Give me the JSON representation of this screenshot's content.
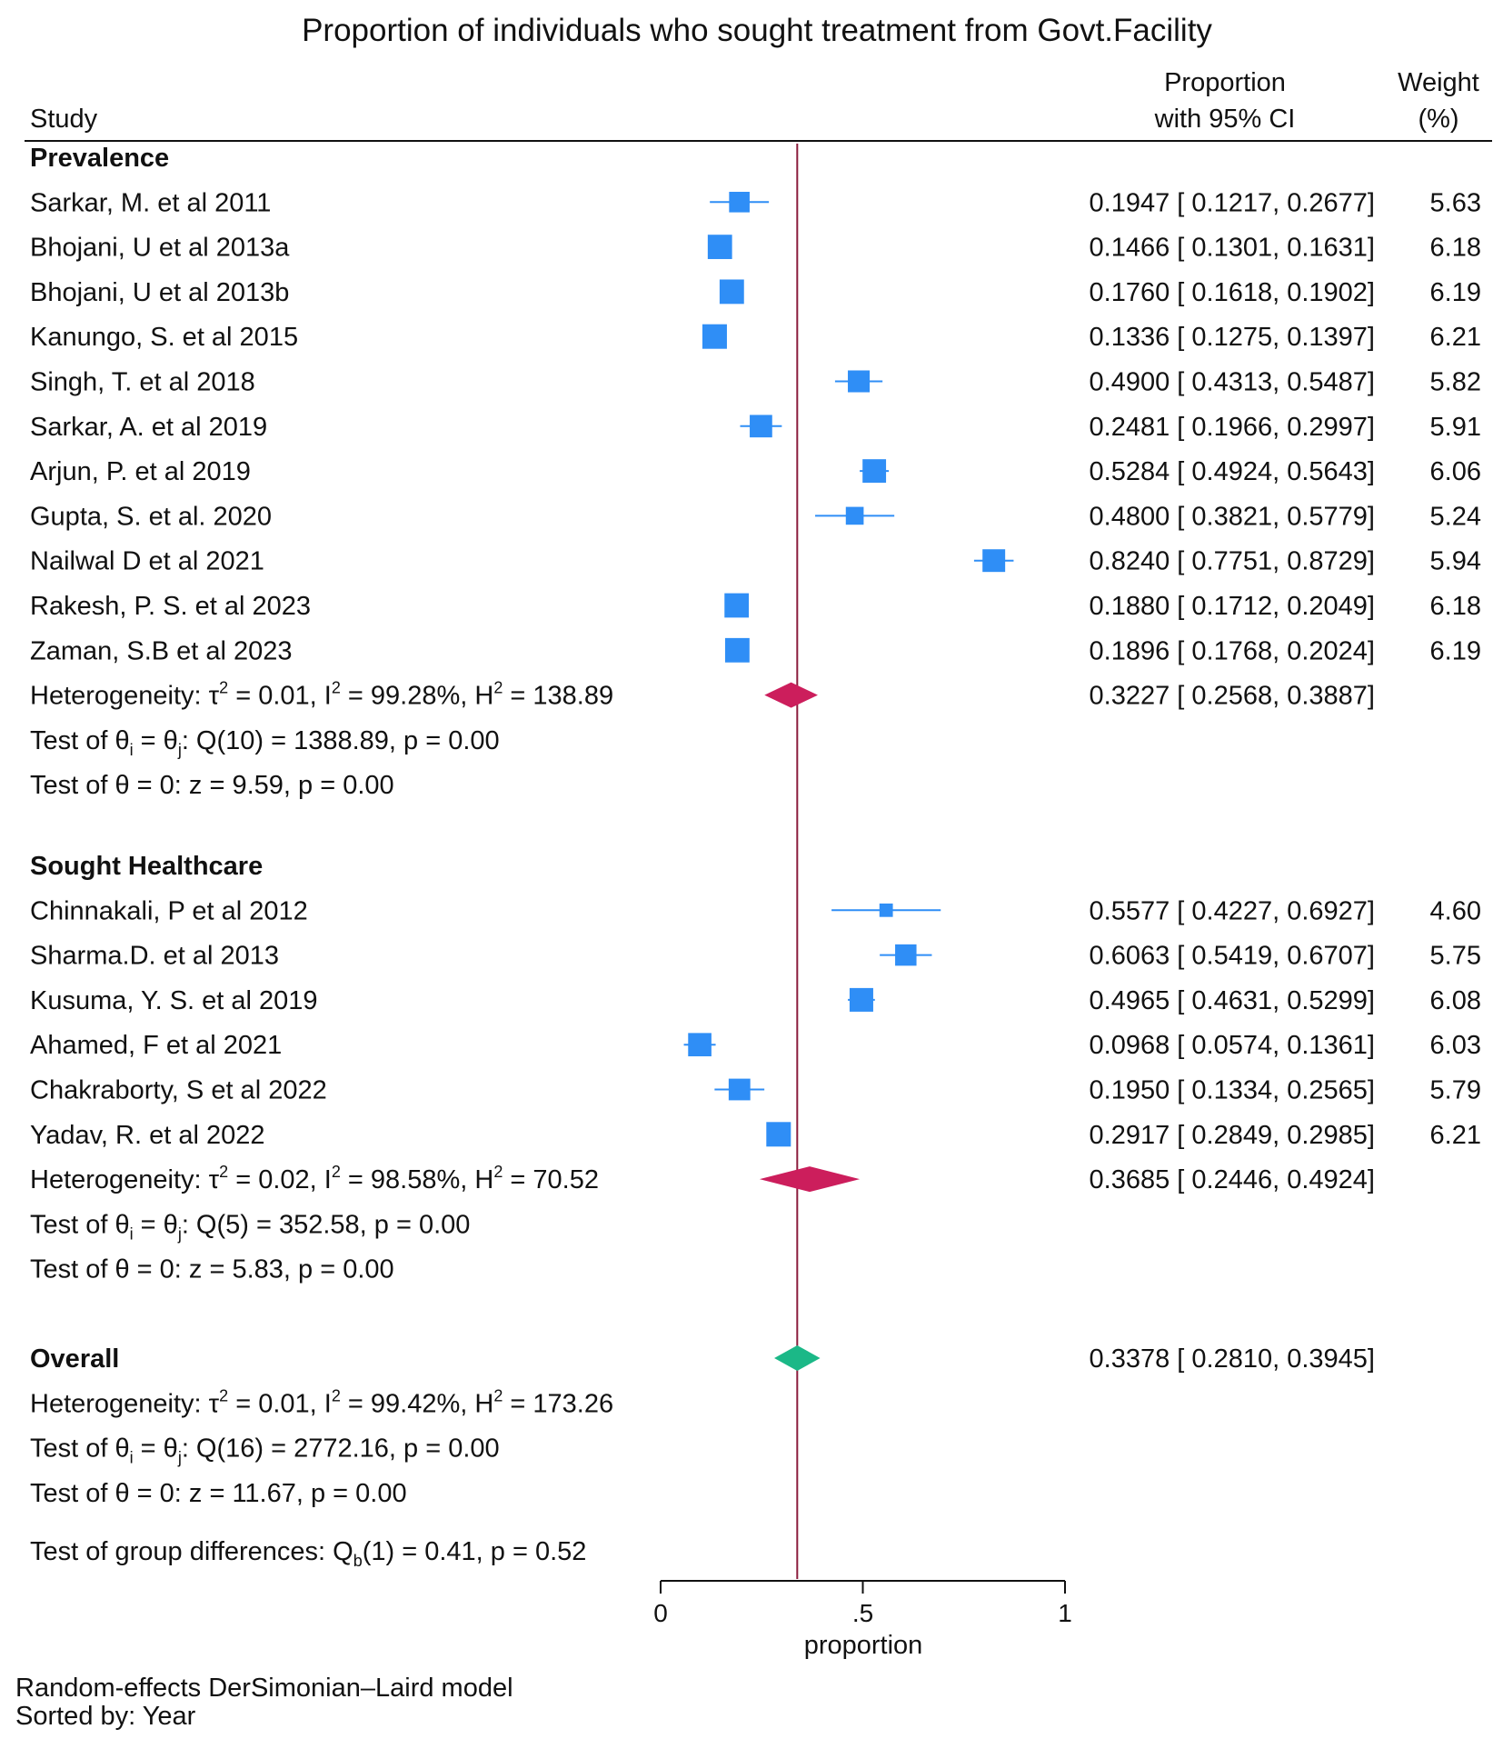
{
  "chart_data": {
    "type": "forest",
    "title": "Proportion of individuals who sought treatment from Govt.Facility",
    "headers": {
      "study": "Study",
      "ci_line1": "Proportion",
      "ci_line2": "with 95% CI",
      "weight_line1": "Weight",
      "weight_line2": "(%)"
    },
    "xlabel": "proportion",
    "xlim": [
      0,
      1
    ],
    "ticks": [
      {
        "value": 0,
        "label": "0"
      },
      {
        "value": 0.5,
        "label": ".5"
      },
      {
        "value": 1,
        "label": "1"
      }
    ],
    "overall_line": 0.3378,
    "groups": [
      {
        "name": "Prevalence",
        "studies": [
          {
            "study": "Sarkar, M. et al 2011",
            "est": 0.1947,
            "lo": 0.1217,
            "hi": 0.2677,
            "weight": "5.63",
            "ci_text": "0.1947 [ 0.1217,  0.2677]"
          },
          {
            "study": "Bhojani, U et al 2013a",
            "est": 0.1466,
            "lo": 0.1301,
            "hi": 0.1631,
            "weight": "6.18",
            "ci_text": "0.1466 [ 0.1301,  0.1631]"
          },
          {
            "study": "Bhojani, U et al 2013b",
            "est": 0.176,
            "lo": 0.1618,
            "hi": 0.1902,
            "weight": "6.19",
            "ci_text": "0.1760 [ 0.1618,  0.1902]"
          },
          {
            "study": "Kanungo, S. et al 2015",
            "est": 0.1336,
            "lo": 0.1275,
            "hi": 0.1397,
            "weight": "6.21",
            "ci_text": "0.1336 [ 0.1275,  0.1397]"
          },
          {
            "study": "Singh, T. et al 2018",
            "est": 0.49,
            "lo": 0.4313,
            "hi": 0.5487,
            "weight": "5.82",
            "ci_text": "0.4900 [ 0.4313,  0.5487]"
          },
          {
            "study": "Sarkar, A. et al 2019",
            "est": 0.2481,
            "lo": 0.1966,
            "hi": 0.2997,
            "weight": "5.91",
            "ci_text": "0.2481 [ 0.1966,  0.2997]"
          },
          {
            "study": "Arjun, P. et al 2019",
            "est": 0.5284,
            "lo": 0.4924,
            "hi": 0.5643,
            "weight": "6.06",
            "ci_text": "0.5284 [ 0.4924,  0.5643]"
          },
          {
            "study": "Gupta, S. et al. 2020",
            "est": 0.48,
            "lo": 0.3821,
            "hi": 0.5779,
            "weight": "5.24",
            "ci_text": "0.4800 [ 0.3821,  0.5779]"
          },
          {
            "study": "Nailwal D et al 2021",
            "est": 0.824,
            "lo": 0.7751,
            "hi": 0.8729,
            "weight": "5.94",
            "ci_text": "0.8240 [ 0.7751,  0.8729]"
          },
          {
            "study": "Rakesh, P. S. et al 2023",
            "est": 0.188,
            "lo": 0.1712,
            "hi": 0.2049,
            "weight": "6.18",
            "ci_text": "0.1880 [ 0.1712,  0.2049]"
          },
          {
            "study": "Zaman, S.B et al 2023",
            "est": 0.1896,
            "lo": 0.1768,
            "hi": 0.2024,
            "weight": "6.19",
            "ci_text": "0.1896 [ 0.1768,  0.2024]"
          }
        ],
        "pooled": {
          "est": 0.3227,
          "lo": 0.2568,
          "hi": 0.3887,
          "ci_text": "0.3227 [ 0.2568,  0.3887]"
        },
        "heterogeneity": {
          "tau2": "0.01",
          "i2": "99.28%",
          "h2": "138.89"
        },
        "q_test": {
          "df": "10",
          "q": "1388.89",
          "p": "0.00"
        },
        "z_test": {
          "z": "9.59",
          "p": "0.00"
        }
      },
      {
        "name": "Sought Healthcare",
        "studies": [
          {
            "study": "Chinnakali, P et al 2012",
            "est": 0.5577,
            "lo": 0.4227,
            "hi": 0.6927,
            "weight": "4.60",
            "ci_text": "0.5577 [ 0.4227,  0.6927]"
          },
          {
            "study": "Sharma.D. et al 2013",
            "est": 0.6063,
            "lo": 0.5419,
            "hi": 0.6707,
            "weight": "5.75",
            "ci_text": "0.6063 [ 0.5419,  0.6707]"
          },
          {
            "study": "Kusuma, Y. S. et al 2019",
            "est": 0.4965,
            "lo": 0.4631,
            "hi": 0.5299,
            "weight": "6.08",
            "ci_text": "0.4965 [ 0.4631,  0.5299]"
          },
          {
            "study": "Ahamed, F et al 2021",
            "est": 0.0968,
            "lo": 0.0574,
            "hi": 0.1361,
            "weight": "6.03",
            "ci_text": "0.0968 [ 0.0574,  0.1361]"
          },
          {
            "study": "Chakraborty, S et al 2022",
            "est": 0.195,
            "lo": 0.1334,
            "hi": 0.2565,
            "weight": "5.79",
            "ci_text": "0.1950 [ 0.1334,  0.2565]"
          },
          {
            "study": "Yadav, R. et al 2022",
            "est": 0.2917,
            "lo": 0.2849,
            "hi": 0.2985,
            "weight": "6.21",
            "ci_text": "0.2917 [ 0.2849,  0.2985]"
          }
        ],
        "pooled": {
          "est": 0.3685,
          "lo": 0.2446,
          "hi": 0.4924,
          "ci_text": "0.3685 [ 0.2446,  0.4924]"
        },
        "heterogeneity": {
          "tau2": "0.02",
          "i2": "98.58%",
          "h2": "70.52"
        },
        "q_test": {
          "df": "5",
          "q": "352.58",
          "p": "0.00"
        },
        "z_test": {
          "z": "5.83",
          "p": "0.00"
        }
      }
    ],
    "overall": {
      "label": "Overall",
      "est": 0.3378,
      "lo": 0.281,
      "hi": 0.3945,
      "ci_text": "0.3378 [ 0.2810,  0.3945]",
      "heterogeneity": {
        "tau2": "0.01",
        "i2": "99.42%",
        "h2": "173.26"
      },
      "q_test": {
        "df": "16",
        "q": "2772.16",
        "p": "0.00"
      },
      "z_test": {
        "z": "11.67",
        "p": "0.00"
      }
    },
    "group_diff": {
      "df": "1",
      "q": "0.41",
      "p": "0.52"
    },
    "footnotes": [
      "Random-effects DerSimonian–Laird model",
      "Sorted by: Year"
    ],
    "colors": {
      "study_marker": "#2f8ef6",
      "subgroup_diamond": "#cc1e5c",
      "overall_diamond": "#1bb887",
      "reference_line": "#8b1c3c",
      "text": "#111111"
    }
  }
}
